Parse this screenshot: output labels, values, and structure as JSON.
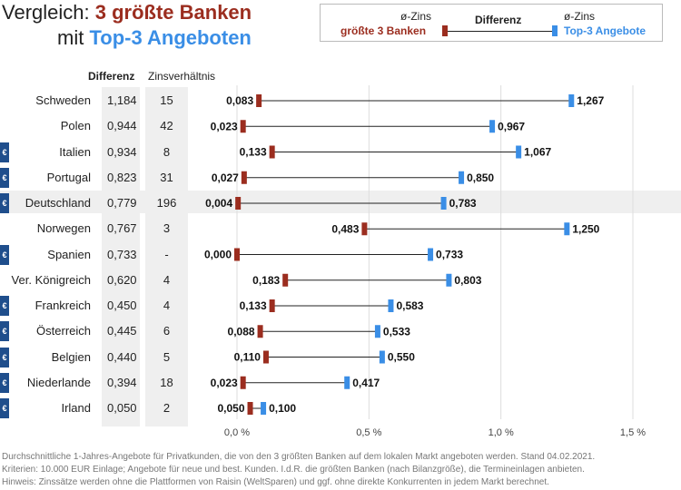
{
  "title": {
    "prefix": "Vergleich: ",
    "highlight1": "3 größte Banken",
    "line2_prefix": "mit ",
    "highlight2": "Top-3 Angeboten"
  },
  "legend": {
    "zins_left": "ø-Zins",
    "zins_right": "ø-Zins",
    "difference": "Differenz",
    "big_banks": "größte 3 Banken",
    "top_offers": "Top-3 Angebote"
  },
  "headers": {
    "difference": "Differenz",
    "ratio": "Zinsverhältnis"
  },
  "colors": {
    "big_banks": "#9b2d1f",
    "top_offers": "#3a8ee6",
    "euro_badge": "#1f4e8c",
    "highlight_row": "#efefef"
  },
  "euro_icon": "euro-icon",
  "chart_data": {
    "type": "dumbbell",
    "xlim": [
      0,
      1.5
    ],
    "x_ticks": [
      0,
      0.5,
      1.0,
      1.5
    ],
    "x_tick_labels": [
      "0,0 %",
      "0,5 %",
      "1,0 %",
      "1,5 %"
    ],
    "grid": true,
    "series": [
      {
        "name": "größte 3 Banken",
        "color": "#9b2d1f"
      },
      {
        "name": "Top-3 Angebote",
        "color": "#3a8ee6"
      }
    ],
    "rows": [
      {
        "country": "Schweden",
        "euro": false,
        "diff": "1,184",
        "ratio": "15",
        "low": 0.083,
        "high": 1.267,
        "low_label": "0,083",
        "high_label": "1,267"
      },
      {
        "country": "Polen",
        "euro": false,
        "diff": "0,944",
        "ratio": "42",
        "low": 0.023,
        "high": 0.967,
        "low_label": "0,023",
        "high_label": "0,967"
      },
      {
        "country": "Italien",
        "euro": true,
        "diff": "0,934",
        "ratio": "8",
        "low": 0.133,
        "high": 1.067,
        "low_label": "0,133",
        "high_label": "1,067"
      },
      {
        "country": "Portugal",
        "euro": true,
        "diff": "0,823",
        "ratio": "31",
        "low": 0.027,
        "high": 0.85,
        "low_label": "0,027",
        "high_label": "0,850"
      },
      {
        "country": "Deutschland",
        "euro": true,
        "diff": "0,779",
        "ratio": "196",
        "low": 0.004,
        "high": 0.783,
        "low_label": "0,004",
        "high_label": "0,783",
        "highlight": true
      },
      {
        "country": "Norwegen",
        "euro": false,
        "diff": "0,767",
        "ratio": "3",
        "low": 0.483,
        "high": 1.25,
        "low_label": "0,483",
        "high_label": "1,250"
      },
      {
        "country": "Spanien",
        "euro": true,
        "diff": "0,733",
        "ratio": "-",
        "low": 0.0,
        "high": 0.733,
        "low_label": "0,000",
        "high_label": "0,733"
      },
      {
        "country": "Ver. Königreich",
        "euro": false,
        "diff": "0,620",
        "ratio": "4",
        "low": 0.183,
        "high": 0.803,
        "low_label": "0,183",
        "high_label": "0,803"
      },
      {
        "country": "Frankreich",
        "euro": true,
        "diff": "0,450",
        "ratio": "4",
        "low": 0.133,
        "high": 0.583,
        "low_label": "0,133",
        "high_label": "0,583"
      },
      {
        "country": "Österreich",
        "euro": true,
        "diff": "0,445",
        "ratio": "6",
        "low": 0.088,
        "high": 0.533,
        "low_label": "0,088",
        "high_label": "0,533"
      },
      {
        "country": "Belgien",
        "euro": true,
        "diff": "0,440",
        "ratio": "5",
        "low": 0.11,
        "high": 0.55,
        "low_label": "0,110",
        "high_label": "0,550"
      },
      {
        "country": "Niederlande",
        "euro": true,
        "diff": "0,394",
        "ratio": "18",
        "low": 0.023,
        "high": 0.417,
        "low_label": "0,023",
        "high_label": "0,417"
      },
      {
        "country": "Irland",
        "euro": true,
        "diff": "0,050",
        "ratio": "2",
        "low": 0.05,
        "high": 0.1,
        "low_label": "0,050",
        "high_label": "0,100"
      }
    ]
  },
  "footnotes": [
    "Durchschnittliche 1-Jahres-Angebote für Privatkunden, die von den 3 größten Banken auf dem lokalen Markt angeboten werden. Stand 04.02.2021.",
    "Kriterien: 10.000 EUR Einlage; Angebote für neue und best. Kunden. I.d.R. die größten Banken (nach Bilanzgröße), die Termineinlagen anbieten.",
    "Hinweis: Zinssätze werden ohne die Plattformen von Raisin (WeltSparen) und ggf. ohne direkte Konkurrenten in jedem Markt berechnet."
  ]
}
